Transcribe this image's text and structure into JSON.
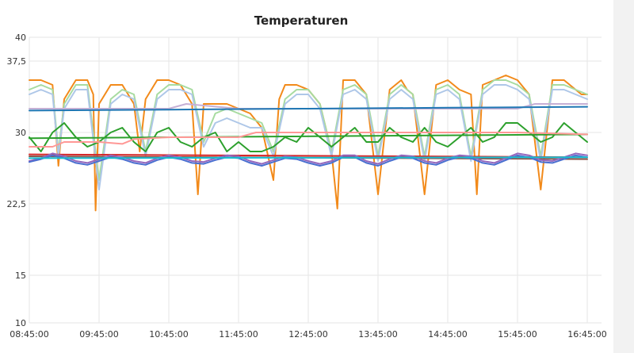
{
  "chart_data": {
    "type": "line",
    "title": "Temperaturen",
    "xlabel": "",
    "ylabel": "",
    "ylim": [
      10,
      40
    ],
    "xlim": [
      "08:45:00",
      "16:45:00"
    ],
    "y_ticks": [
      "10",
      "15",
      "22,5",
      "30",
      "37,5",
      "40"
    ],
    "y_tick_values": [
      10,
      15,
      22.5,
      30,
      37.5,
      40
    ],
    "x_ticks": [
      "08:45:00",
      "09:45:00",
      "10:45:00",
      "11:45:00",
      "12:45:00",
      "13:45:00",
      "14:45:00",
      "15:45:00",
      "16:45:00"
    ],
    "grid": true,
    "legend": "none",
    "series": [
      {
        "color": "#f28a1a",
        "x": [
          "08:45",
          "08:55",
          "09:05",
          "09:10",
          "09:15",
          "09:25",
          "09:35",
          "09:40",
          "09:42",
          "09:45",
          "09:55",
          "10:05",
          "10:15",
          "10:20",
          "10:25",
          "10:35",
          "10:45",
          "10:55",
          "11:05",
          "11:10",
          "11:15",
          "11:20",
          "11:25",
          "11:35",
          "11:45",
          "11:55",
          "12:05",
          "12:15",
          "12:20",
          "12:25",
          "12:35",
          "12:45",
          "12:55",
          "13:05",
          "13:10",
          "13:15",
          "13:25",
          "13:35",
          "13:45",
          "13:55",
          "14:05",
          "14:10",
          "14:15",
          "14:25",
          "14:35",
          "14:45",
          "14:55",
          "15:05",
          "15:10",
          "15:15",
          "15:25",
          "15:35",
          "15:45",
          "15:55",
          "16:05",
          "16:15",
          "16:25",
          "16:35",
          "16:40",
          "16:45"
        ],
        "values": [
          35.5,
          35.5,
          35.0,
          26.5,
          33.5,
          35.5,
          35.5,
          34.0,
          21.8,
          33.0,
          35.0,
          35.0,
          33.0,
          28.0,
          33.5,
          35.5,
          35.5,
          35.0,
          33.0,
          23.5,
          33.0,
          33.0,
          33.0,
          33.0,
          32.5,
          32.0,
          30.5,
          25.0,
          33.5,
          35.0,
          35.0,
          34.5,
          33.0,
          28.0,
          22.0,
          35.5,
          35.5,
          34.0,
          23.5,
          34.5,
          35.5,
          34.5,
          34.0,
          23.5,
          35.0,
          35.5,
          34.5,
          34.0,
          23.5,
          35.0,
          35.5,
          36.0,
          35.5,
          34.0,
          24.0,
          35.5,
          35.5,
          34.5,
          34.0,
          34.0
        ]
      },
      {
        "color": "#a7dba0",
        "x": [
          "08:45",
          "08:55",
          "09:05",
          "09:10",
          "09:15",
          "09:25",
          "09:35",
          "09:45",
          "09:55",
          "10:05",
          "10:15",
          "10:25",
          "10:35",
          "10:45",
          "10:55",
          "11:05",
          "11:15",
          "11:25",
          "11:35",
          "11:45",
          "11:55",
          "12:05",
          "12:15",
          "12:25",
          "12:35",
          "12:45",
          "12:55",
          "13:05",
          "13:15",
          "13:25",
          "13:35",
          "13:45",
          "13:55",
          "14:05",
          "14:15",
          "14:25",
          "14:35",
          "14:45",
          "14:55",
          "15:05",
          "15:15",
          "15:25",
          "15:35",
          "15:45",
          "15:55",
          "16:05",
          "16:15",
          "16:25",
          "16:35",
          "16:45"
        ],
        "values": [
          34.5,
          35.0,
          34.5,
          28.0,
          33.0,
          35.0,
          35.0,
          25.0,
          33.5,
          34.5,
          34.0,
          28.0,
          34.0,
          35.0,
          35.0,
          34.5,
          29.0,
          32.0,
          32.5,
          32.0,
          31.5,
          31.0,
          28.0,
          33.5,
          34.5,
          34.5,
          33.0,
          28.0,
          34.5,
          35.0,
          34.0,
          27.5,
          34.0,
          35.0,
          34.0,
          27.5,
          34.5,
          35.0,
          34.0,
          27.5,
          34.5,
          35.5,
          35.5,
          35.0,
          34.0,
          27.5,
          35.0,
          35.0,
          34.5,
          34.0
        ]
      },
      {
        "color": "#aec7e8",
        "x": [
          "08:45",
          "08:55",
          "09:05",
          "09:10",
          "09:15",
          "09:25",
          "09:35",
          "09:45",
          "09:55",
          "10:05",
          "10:15",
          "10:25",
          "10:35",
          "10:45",
          "10:55",
          "11:05",
          "11:15",
          "11:25",
          "11:35",
          "11:45",
          "11:55",
          "12:05",
          "12:15",
          "12:25",
          "12:35",
          "12:45",
          "12:55",
          "13:05",
          "13:15",
          "13:25",
          "13:35",
          "13:45",
          "13:55",
          "14:05",
          "14:15",
          "14:25",
          "14:35",
          "14:45",
          "14:55",
          "15:05",
          "15:15",
          "15:25",
          "15:35",
          "15:45",
          "15:55",
          "16:05",
          "16:15",
          "16:25",
          "16:35",
          "16:45"
        ],
        "values": [
          34.0,
          34.5,
          34.0,
          27.5,
          32.5,
          34.5,
          34.5,
          24.0,
          33.0,
          34.0,
          33.5,
          27.5,
          33.5,
          34.5,
          34.5,
          34.0,
          28.5,
          31.0,
          31.5,
          31.0,
          30.5,
          30.5,
          27.5,
          33.0,
          34.0,
          34.0,
          32.5,
          27.5,
          34.0,
          34.5,
          33.5,
          27.0,
          33.5,
          34.5,
          33.5,
          27.0,
          34.0,
          34.5,
          33.5,
          27.0,
          34.0,
          35.0,
          35.0,
          34.5,
          33.5,
          27.0,
          34.5,
          34.5,
          34.0,
          33.5
        ]
      },
      {
        "color": "#c5b0d5",
        "x": [
          "08:45",
          "09:45",
          "10:45",
          "11:00",
          "11:45",
          "12:45",
          "13:45",
          "14:45",
          "15:45",
          "16:00",
          "16:45"
        ],
        "values": [
          32.5,
          32.5,
          32.5,
          33.0,
          32.5,
          32.5,
          32.5,
          32.5,
          32.5,
          33.0,
          33.0
        ]
      },
      {
        "color": "#1f77b4",
        "x": [
          "08:45",
          "10:45",
          "12:45",
          "14:45",
          "16:45"
        ],
        "values": [
          32.3,
          32.4,
          32.5,
          32.6,
          32.7
        ]
      },
      {
        "color": "#2ca02c",
        "x": [
          "08:45",
          "08:55",
          "09:05",
          "09:15",
          "09:25",
          "09:35",
          "09:45",
          "09:55",
          "10:05",
          "10:15",
          "10:25",
          "10:35",
          "10:45",
          "10:55",
          "11:05",
          "11:15",
          "11:25",
          "11:35",
          "11:45",
          "11:55",
          "12:05",
          "12:15",
          "12:25",
          "12:35",
          "12:45",
          "12:55",
          "13:05",
          "13:15",
          "13:25",
          "13:35",
          "13:45",
          "13:55",
          "14:05",
          "14:15",
          "14:25",
          "14:35",
          "14:45",
          "14:55",
          "15:05",
          "15:15",
          "15:25",
          "15:35",
          "15:45",
          "15:55",
          "16:05",
          "16:15",
          "16:25",
          "16:35",
          "16:45"
        ],
        "values": [
          29.5,
          28.0,
          30.0,
          31.0,
          29.5,
          28.5,
          29.0,
          30.0,
          30.5,
          29.0,
          28.0,
          30.0,
          30.5,
          29.0,
          28.5,
          29.5,
          30.0,
          28.0,
          29.0,
          28.0,
          28.0,
          28.5,
          29.5,
          29.0,
          30.5,
          29.5,
          28.5,
          29.5,
          30.5,
          29.0,
          29.0,
          30.5,
          29.5,
          29.0,
          30.5,
          29.0,
          28.5,
          29.5,
          30.5,
          29.0,
          29.5,
          31.0,
          31.0,
          30.0,
          29.0,
          29.5,
          31.0,
          30.0,
          29.0
        ]
      },
      {
        "color": "#2ca02c",
        "x": [
          "08:45",
          "16:45"
        ],
        "values": [
          29.4,
          29.8
        ]
      },
      {
        "color": "#ff9896",
        "x": [
          "08:45",
          "09:05",
          "09:15",
          "09:45",
          "10:05",
          "10:15",
          "10:45",
          "11:15",
          "11:45",
          "12:00",
          "12:15",
          "12:45",
          "13:45",
          "14:45",
          "15:45",
          "16:45"
        ],
        "values": [
          28.5,
          28.5,
          29.0,
          29.0,
          28.8,
          29.3,
          29.5,
          29.5,
          29.5,
          30.0,
          30.0,
          30.0,
          30.0,
          30.0,
          30.0,
          29.8
        ]
      },
      {
        "color": "#d62728",
        "x": [
          "08:45",
          "16:45"
        ],
        "values": [
          27.7,
          27.4
        ]
      },
      {
        "color": "#8c564b",
        "x": [
          "08:45",
          "16:45"
        ],
        "values": [
          27.5,
          27.2
        ]
      },
      {
        "color": "#9467bd",
        "x": [
          "08:45",
          "08:55",
          "09:05",
          "09:15",
          "09:25",
          "09:35",
          "09:45",
          "09:55",
          "10:05",
          "10:15",
          "10:25",
          "10:35",
          "10:45",
          "10:55",
          "11:05",
          "11:15",
          "11:25",
          "11:35",
          "11:45",
          "11:55",
          "12:05",
          "12:15",
          "12:25",
          "12:35",
          "12:45",
          "12:55",
          "13:05",
          "13:15",
          "13:25",
          "13:35",
          "13:45",
          "13:55",
          "14:05",
          "14:15",
          "14:25",
          "14:35",
          "14:45",
          "14:55",
          "15:05",
          "15:15",
          "15:25",
          "15:35",
          "15:45",
          "15:55",
          "16:05",
          "16:15",
          "16:25",
          "16:35",
          "16:45"
        ],
        "values": [
          27.0,
          27.3,
          27.8,
          27.5,
          27.0,
          26.8,
          27.2,
          27.6,
          27.4,
          27.0,
          26.8,
          27.3,
          27.6,
          27.4,
          27.0,
          26.9,
          27.3,
          27.6,
          27.5,
          27.0,
          26.7,
          27.1,
          27.5,
          27.4,
          27.0,
          26.7,
          27.0,
          27.6,
          27.6,
          27.0,
          26.7,
          27.2,
          27.6,
          27.5,
          27.0,
          26.8,
          27.3,
          27.6,
          27.5,
          27.0,
          26.8,
          27.3,
          27.8,
          27.6,
          27.1,
          27.0,
          27.4,
          27.8,
          27.6
        ]
      },
      {
        "color": "#4a6fd0",
        "x": [
          "08:45",
          "08:55",
          "09:05",
          "09:15",
          "09:25",
          "09:35",
          "09:45",
          "09:55",
          "10:05",
          "10:15",
          "10:25",
          "10:35",
          "10:45",
          "10:55",
          "11:05",
          "11:15",
          "11:25",
          "11:35",
          "11:45",
          "11:55",
          "12:05",
          "12:15",
          "12:25",
          "12:35",
          "12:45",
          "12:55",
          "13:05",
          "13:15",
          "13:25",
          "13:35",
          "13:45",
          "13:55",
          "14:05",
          "14:15",
          "14:25",
          "14:35",
          "14:45",
          "14:55",
          "15:05",
          "15:15",
          "15:25",
          "15:35",
          "15:45",
          "15:55",
          "16:05",
          "16:15",
          "16:25",
          "16:35",
          "16:45"
        ],
        "values": [
          26.9,
          27.2,
          27.6,
          27.3,
          26.8,
          26.6,
          27.0,
          27.4,
          27.2,
          26.8,
          26.6,
          27.1,
          27.4,
          27.2,
          26.8,
          26.7,
          27.1,
          27.4,
          27.3,
          26.8,
          26.5,
          26.9,
          27.3,
          27.2,
          26.8,
          26.5,
          26.8,
          27.4,
          27.4,
          26.8,
          26.5,
          27.0,
          27.4,
          27.3,
          26.8,
          26.6,
          27.1,
          27.4,
          27.3,
          26.8,
          26.6,
          27.1,
          27.6,
          27.4,
          26.9,
          26.8,
          27.2,
          27.6,
          27.4
        ]
      },
      {
        "color": "#17becf",
        "x": [
          "08:45",
          "16:45"
        ],
        "values": [
          27.3,
          27.4
        ]
      }
    ]
  }
}
